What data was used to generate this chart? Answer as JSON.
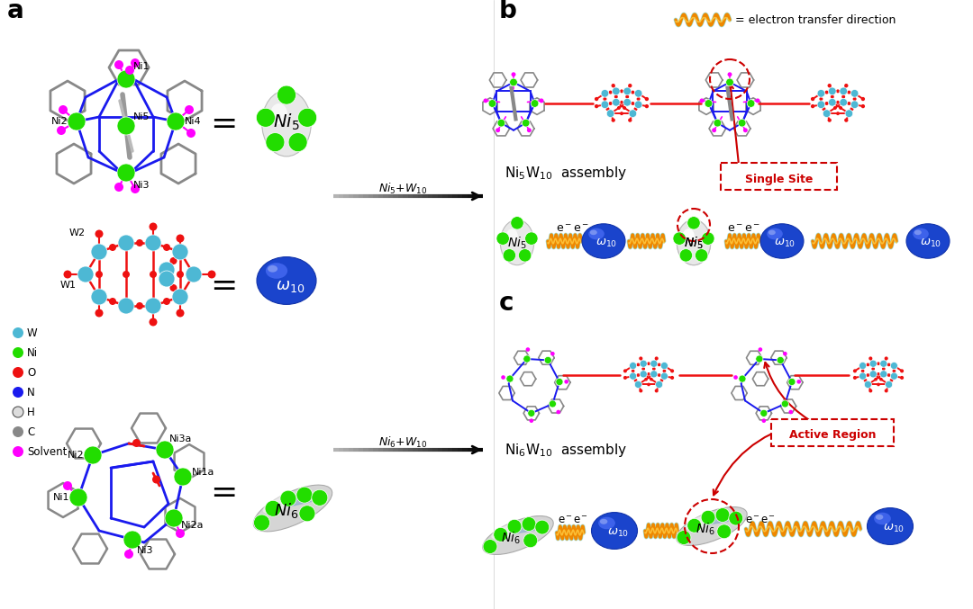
{
  "bg_color": "#ffffff",
  "colors": {
    "W": "#4db8d4",
    "Ni": "#22dd00",
    "O": "#ee1111",
    "N": "#1a1aee",
    "H": "#eeeeee",
    "C": "#888888",
    "Solvent": "#ff00ff",
    "gray_bond": "#888888",
    "blue_bond": "#1a1aee",
    "red_bond": "#ee1111"
  },
  "legend_items": [
    {
      "label": "W",
      "color": "#4db8d4"
    },
    {
      "label": "Ni",
      "color": "#22dd00"
    },
    {
      "label": "O",
      "color": "#ee1111"
    },
    {
      "label": "N",
      "color": "#1a1aee"
    },
    {
      "label": "H",
      "color": "#dddddd"
    },
    {
      "label": "C",
      "color": "#888888"
    },
    {
      "label": "Solvent",
      "color": "#ff00ff"
    }
  ],
  "spring_orange": "#ee8800",
  "spring_yellow": "#ffcc44",
  "spring_cyan": "#44cccc"
}
